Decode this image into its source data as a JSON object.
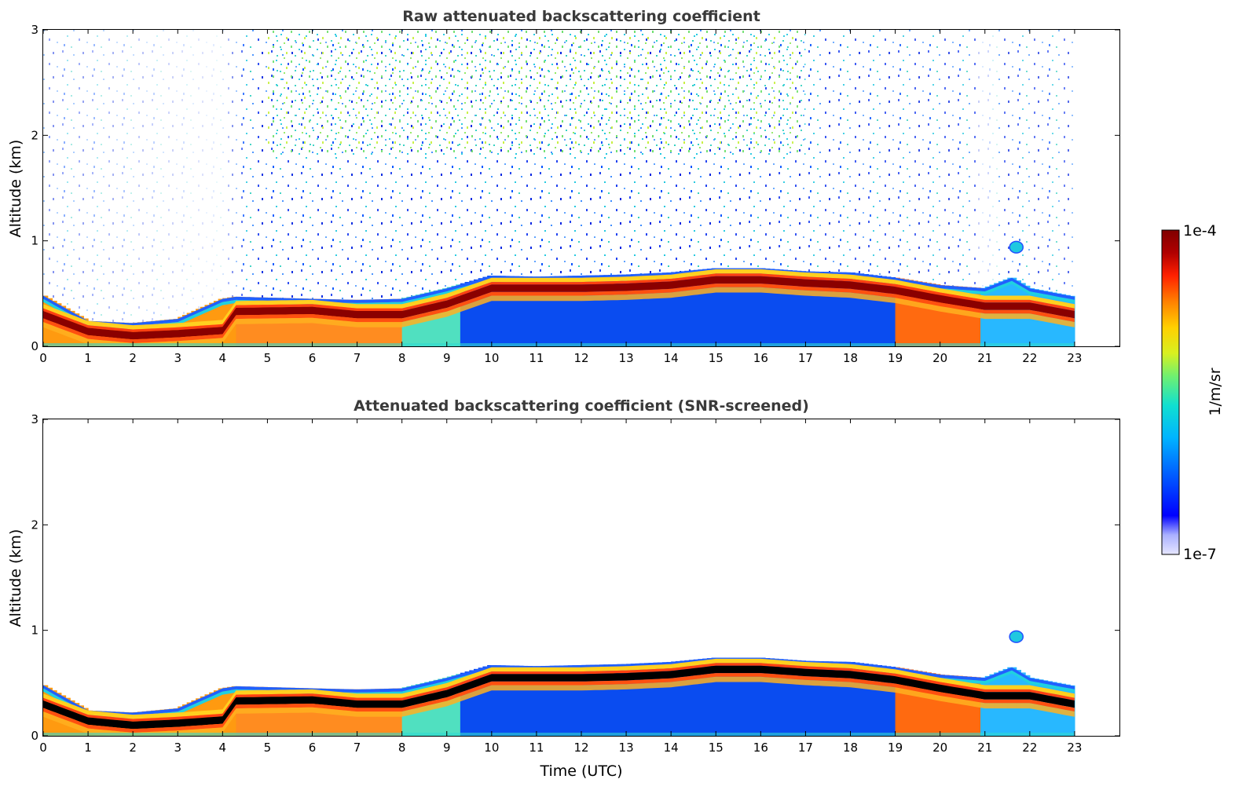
{
  "chart_data": [
    {
      "type": "heatmap",
      "title": "Raw attenuated backscattering coefficient",
      "xlabel": "",
      "ylabel": "Altitude (km)",
      "xlim": [
        0,
        24
      ],
      "ylim": [
        0,
        3
      ],
      "xticks": [
        "0",
        "1",
        "2",
        "3",
        "4",
        "5",
        "6",
        "7",
        "8",
        "9",
        "10",
        "11",
        "12",
        "13",
        "14",
        "15",
        "16",
        "17",
        "18",
        "19",
        "20",
        "21",
        "22",
        "23"
      ],
      "yticks": [
        "0",
        "1",
        "2",
        "3"
      ],
      "data_time_range_utc": [
        0,
        23
      ],
      "aerosol_layer_top_km": [
        [
          0,
          0.48
        ],
        [
          1,
          0.24
        ],
        [
          2,
          0.22
        ],
        [
          3,
          0.26
        ],
        [
          4,
          0.45
        ],
        [
          4.3,
          0.47
        ],
        [
          6,
          0.45
        ],
        [
          7,
          0.44
        ],
        [
          8,
          0.45
        ],
        [
          9,
          0.55
        ],
        [
          10,
          0.67
        ],
        [
          11,
          0.66
        ],
        [
          12,
          0.67
        ],
        [
          13,
          0.68
        ],
        [
          14,
          0.7
        ],
        [
          15,
          0.74
        ],
        [
          16,
          0.74
        ],
        [
          17,
          0.71
        ],
        [
          18,
          0.7
        ],
        [
          19,
          0.65
        ],
        [
          20,
          0.58
        ],
        [
          21,
          0.55
        ],
        [
          21.6,
          0.65
        ],
        [
          22,
          0.55
        ],
        [
          23,
          0.47
        ]
      ],
      "max_backscatter_layer_km": [
        [
          0,
          0.3
        ],
        [
          1,
          0.14
        ],
        [
          2,
          0.1
        ],
        [
          3,
          0.12
        ],
        [
          4,
          0.15
        ],
        [
          4.3,
          0.33
        ],
        [
          6,
          0.34
        ],
        [
          7,
          0.3
        ],
        [
          8,
          0.3
        ],
        [
          9,
          0.4
        ],
        [
          10,
          0.55
        ],
        [
          11,
          0.55
        ],
        [
          12,
          0.55
        ],
        [
          13,
          0.56
        ],
        [
          14,
          0.58
        ],
        [
          15,
          0.63
        ],
        [
          16,
          0.63
        ],
        [
          17,
          0.6
        ],
        [
          18,
          0.58
        ],
        [
          19,
          0.53
        ],
        [
          20,
          0.45
        ],
        [
          21,
          0.38
        ],
        [
          22,
          0.38
        ],
        [
          23,
          0.3
        ]
      ],
      "elevated_feature": {
        "time_utc": [
          21.55,
          21.85
        ],
        "altitude_km": [
          0.9,
          0.98
        ]
      }
    },
    {
      "type": "heatmap",
      "title": "Attenuated backscattering coefficient (SNR-screened)",
      "xlabel": "Time (UTC)",
      "ylabel": "Altitude (km)",
      "xlim": [
        0,
        24
      ],
      "ylim": [
        0,
        3
      ],
      "xticks": [
        "0",
        "1",
        "2",
        "3",
        "4",
        "5",
        "6",
        "7",
        "8",
        "9",
        "10",
        "11",
        "12",
        "13",
        "14",
        "15",
        "16",
        "17",
        "18",
        "19",
        "20",
        "21",
        "22",
        "23"
      ],
      "yticks": [
        "0",
        "1",
        "2",
        "3"
      ],
      "data_time_range_utc": [
        0,
        23
      ],
      "saturated_layer_color": "#000000"
    }
  ],
  "colorbar": {
    "label": "1/m/sr",
    "min_label": "1e-7",
    "max_label": "1e-4",
    "scale": "log",
    "colors": [
      "#e6e6ff",
      "#aab0ff",
      "#0000ff",
      "#0060ff",
      "#00b4ff",
      "#10e0d0",
      "#70f070",
      "#d8f020",
      "#ffd000",
      "#ff8000",
      "#ff2000",
      "#b00000",
      "#800000"
    ]
  }
}
